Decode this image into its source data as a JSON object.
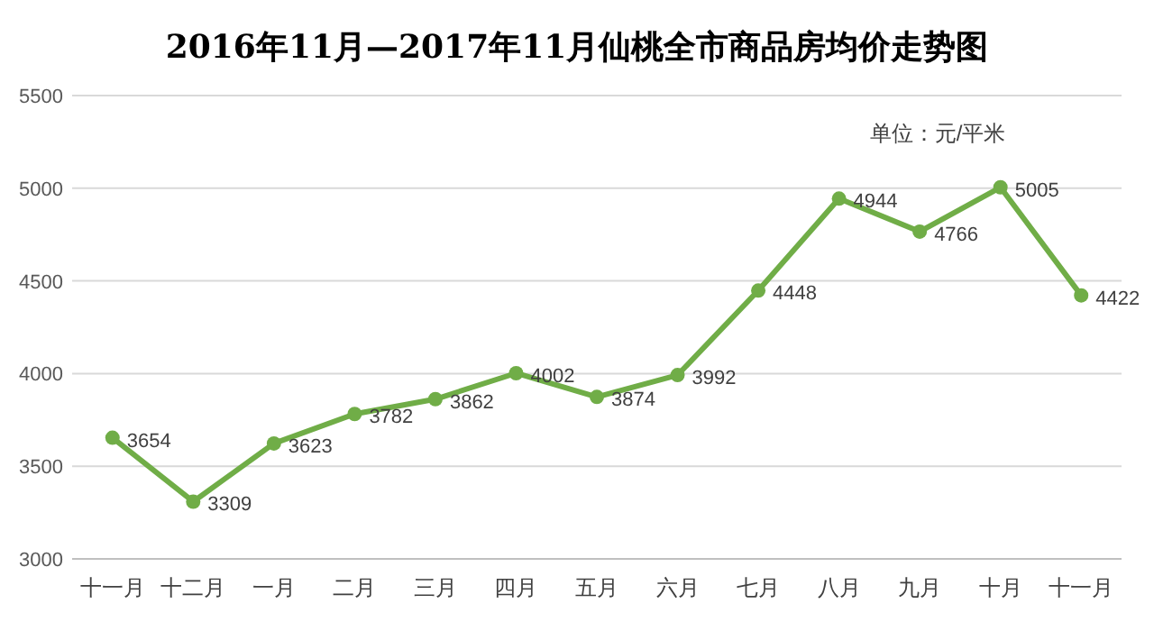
{
  "chart_data": {
    "type": "line",
    "title": "2016年11月—2017年11月仙桃全市商品房均价走势图",
    "annotations": [
      "单位：元/平米"
    ],
    "categories": [
      "十一月",
      "十二月",
      "一月",
      "二月",
      "三月",
      "四月",
      "五月",
      "六月",
      "七月",
      "八月",
      "九月",
      "十月",
      "十一月"
    ],
    "series": [
      {
        "color": "#70ad47",
        "values": [
          3654,
          3309,
          3623,
          3782,
          3862,
          4002,
          3874,
          3992,
          4448,
          4944,
          4766,
          5005,
          4422
        ]
      }
    ],
    "ylim": [
      3000,
      5500
    ],
    "yticks": [
      3000,
      3500,
      4000,
      4500,
      5000,
      5500
    ],
    "grid": "y",
    "marker": "circle",
    "line_style": "solid",
    "data_labels": true
  }
}
